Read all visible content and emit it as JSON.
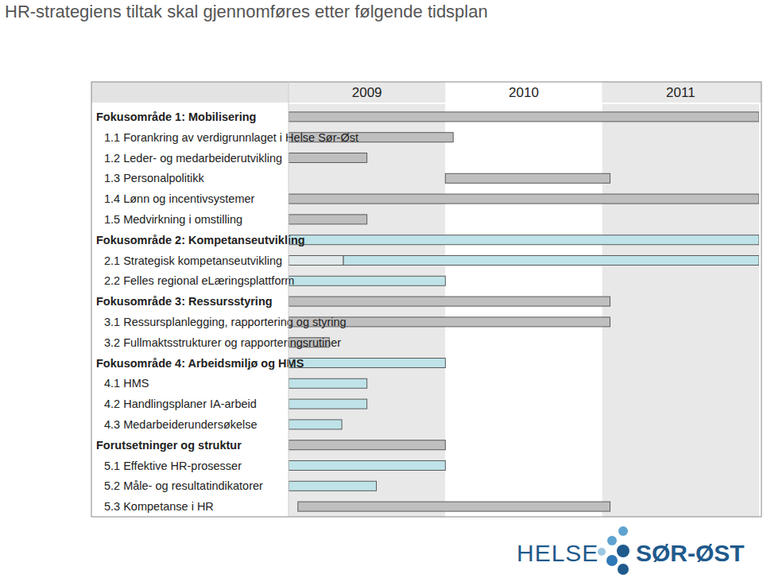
{
  "chart_data": {
    "type": "gantt",
    "title": "HR-strategiens tiltak skal gjennomføres etter følgende tidsplan",
    "xlim": [
      2009,
      2012
    ],
    "xticks": [
      2009,
      2010,
      2011
    ],
    "rows": [
      {
        "label": "Fokusområde 1: Mobilisering",
        "group": true,
        "bars": [
          {
            "start": 2009,
            "end": 2012,
            "color": "#bfbfbf"
          }
        ]
      },
      {
        "label": "1.1 Forankring av verdigrunnlaget i Helse Sør-Øst",
        "bars": [
          {
            "start": 2009,
            "end": 2010.05,
            "color": "#bfbfbf"
          }
        ]
      },
      {
        "label": "1.2 Leder- og medarbeiderutvikling",
        "bars": [
          {
            "start": 2009,
            "end": 2009.5,
            "color": "#bfbfbf"
          }
        ]
      },
      {
        "label": "1.3 Personalpolitikk",
        "bars": [
          {
            "start": 2010,
            "end": 2011.05,
            "color": "#bfbfbf"
          }
        ]
      },
      {
        "label": "1.4 Lønn og incentivsystemer",
        "bars": [
          {
            "start": 2009,
            "end": 2012,
            "color": "#bfbfbf"
          }
        ]
      },
      {
        "label": "1.5 Medvirkning i omstilling",
        "bars": [
          {
            "start": 2009,
            "end": 2009.5,
            "color": "#bfbfbf"
          }
        ]
      },
      {
        "label": "Fokusområde 2: Kompetanseutvikling",
        "group": true,
        "bars": [
          {
            "start": 2009,
            "end": 2012,
            "color": "#bfe3e8"
          }
        ]
      },
      {
        "label": "2.1 Strategisk kompetanseutvikling",
        "bars": [
          {
            "start": 2009,
            "end": 2009.35,
            "color": "#dfe9ec"
          },
          {
            "start": 2009.35,
            "end": 2012,
            "color": "#bfe3e8"
          }
        ]
      },
      {
        "label": "2.2 Felles regional eLæringsplattform",
        "bars": [
          {
            "start": 2009,
            "end": 2010,
            "color": "#bfe3e8"
          }
        ]
      },
      {
        "label": "Fokusområde 3: Ressursstyring",
        "group": true,
        "bars": [
          {
            "start": 2009,
            "end": 2011.05,
            "color": "#bfbfbf"
          }
        ]
      },
      {
        "label": "3.1 Ressursplanlegging, rapportering og styring",
        "bars": [
          {
            "start": 2009,
            "end": 2011.05,
            "color": "#bfbfbf"
          }
        ]
      },
      {
        "label": "3.2 Fullmaktsstrukturer og rapporteringsrutiner",
        "bars": [
          {
            "start": 2009,
            "end": 2009.26,
            "color": "#bfbfbf"
          }
        ]
      },
      {
        "label": "Fokusområde 4: Arbeidsmiljø og HMS",
        "group": true,
        "bars": [
          {
            "start": 2009,
            "end": 2010,
            "color": "#bfe3e8"
          }
        ]
      },
      {
        "label": "4.1 HMS",
        "bars": [
          {
            "start": 2009,
            "end": 2009.5,
            "color": "#bfe3e8"
          }
        ]
      },
      {
        "label": "4.2 Handlingsplaner IA-arbeid",
        "bars": [
          {
            "start": 2009,
            "end": 2009.5,
            "color": "#bfe3e8"
          }
        ]
      },
      {
        "label": "4.3 Medarbeiderundersøkelse",
        "bars": [
          {
            "start": 2009,
            "end": 2009.34,
            "color": "#bfe3e8"
          }
        ]
      },
      {
        "label": "Forutsetninger og struktur",
        "group": true,
        "bars": [
          {
            "start": 2009,
            "end": 2010,
            "color": "#bfbfbf"
          }
        ]
      },
      {
        "label": "5.1 Effektive HR-prosesser",
        "bars": [
          {
            "start": 2009,
            "end": 2010,
            "color": "#bfe3e8"
          }
        ]
      },
      {
        "label": "5.2 Måle- og resultatindikatorer",
        "bars": [
          {
            "start": 2009,
            "end": 2009.56,
            "color": "#bfe3e8"
          }
        ]
      },
      {
        "label": "5.3 Kompetanse i HR",
        "bars": [
          {
            "start": 2009.06,
            "end": 2011.05,
            "color": "#bfbfbf"
          }
        ]
      }
    ]
  },
  "logo": {
    "left": "HELSE",
    "right": "SØR-ØST"
  }
}
